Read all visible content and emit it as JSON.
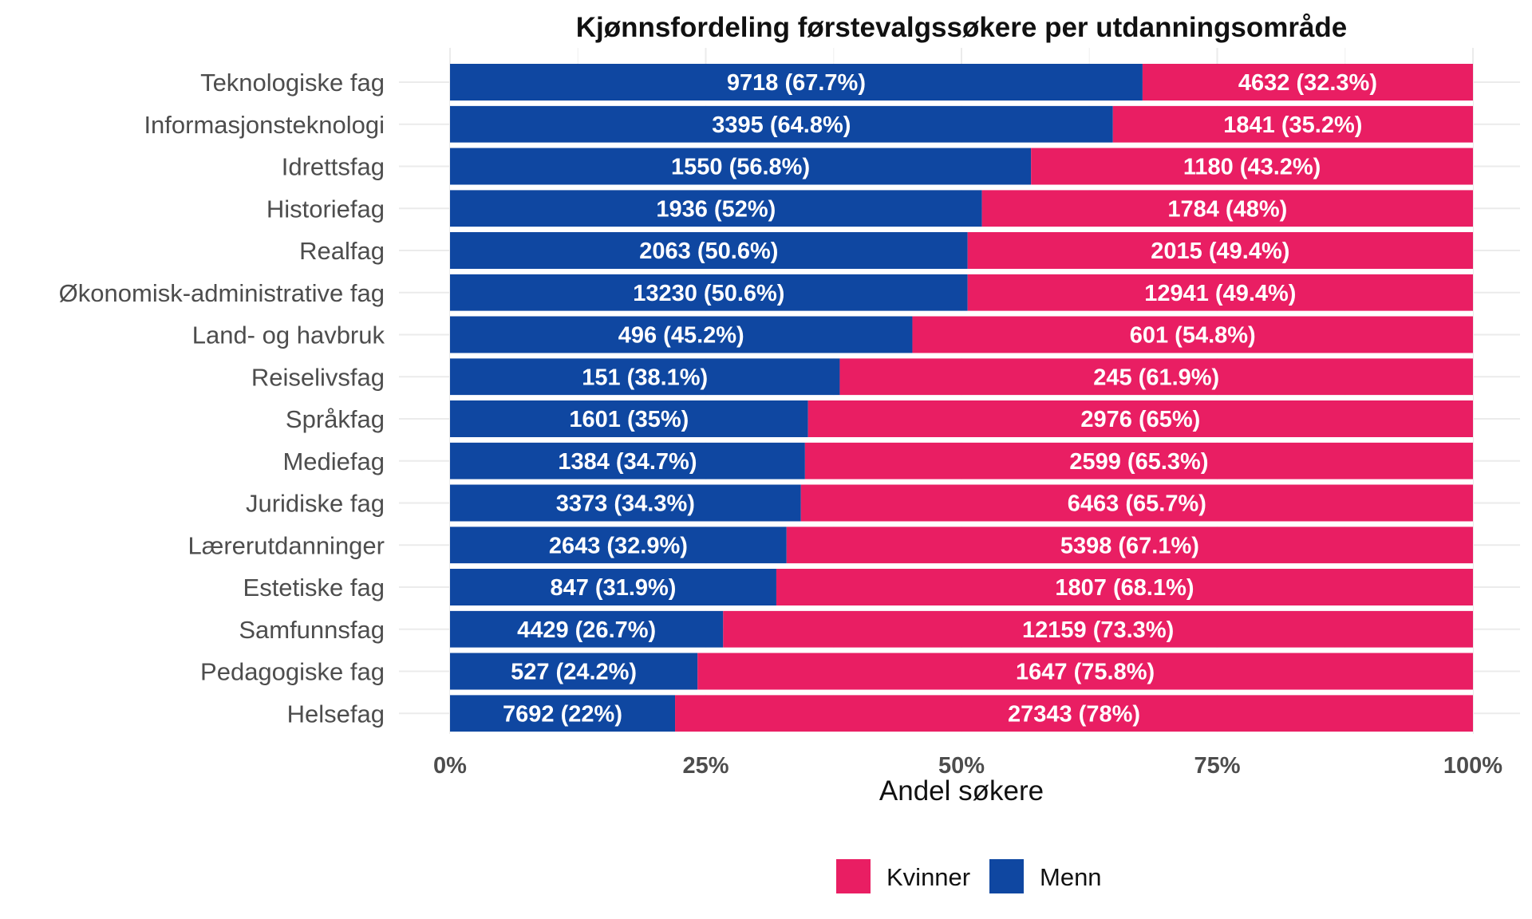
{
  "chart_data": {
    "type": "bar",
    "orientation": "horizontal",
    "stacked": true,
    "title": "Kjønnsfordeling førstevalgssøkere per utdanningsområde",
    "xlabel": "Andel søkere",
    "ylabel": "",
    "xlim": [
      0,
      1
    ],
    "x_ticks": [
      "0%",
      "25%",
      "50%",
      "75%",
      "100%"
    ],
    "grid": true,
    "legend_position": "bottom",
    "categories": [
      "Teknologiske fag",
      "Informasjonsteknologi",
      "Idrettsfag",
      "Historiefag",
      "Realfag",
      "Økonomisk-administrative fag",
      "Land- og havbruk",
      "Reiselivsfag",
      "Språkfag",
      "Mediefag",
      "Juridiske fag",
      "Lærerutdanninger",
      "Estetiske fag",
      "Samfunnsfag",
      "Pedagogiske fag",
      "Helsefag"
    ],
    "series": [
      {
        "name": "Menn",
        "color": "#0f47a1",
        "counts": [
          9718,
          3395,
          1550,
          1936,
          2063,
          13230,
          496,
          151,
          1601,
          1384,
          3373,
          2643,
          847,
          4429,
          527,
          7692
        ],
        "shares": [
          0.677,
          0.648,
          0.568,
          0.52,
          0.506,
          0.506,
          0.452,
          0.381,
          0.35,
          0.347,
          0.343,
          0.329,
          0.319,
          0.267,
          0.242,
          0.22
        ],
        "labels": [
          "9718 (67.7%)",
          "3395 (64.8%)",
          "1550 (56.8%)",
          "1936 (52%)",
          "2063 (50.6%)",
          "13230 (50.6%)",
          "496 (45.2%)",
          "151 (38.1%)",
          "1601 (35%)",
          "1384 (34.7%)",
          "3373 (34.3%)",
          "2643 (32.9%)",
          "847 (31.9%)",
          "4429 (26.7%)",
          "527 (24.2%)",
          "7692 (22%)"
        ]
      },
      {
        "name": "Kvinner",
        "color": "#e91e63",
        "counts": [
          4632,
          1841,
          1180,
          1784,
          2015,
          12941,
          601,
          245,
          2976,
          2599,
          6463,
          5398,
          1807,
          12159,
          1647,
          27343
        ],
        "shares": [
          0.323,
          0.352,
          0.432,
          0.48,
          0.494,
          0.494,
          0.548,
          0.619,
          0.65,
          0.653,
          0.657,
          0.671,
          0.681,
          0.733,
          0.758,
          0.78
        ],
        "labels": [
          "4632 (32.3%)",
          "1841 (35.2%)",
          "1180 (43.2%)",
          "1784 (48%)",
          "2015 (49.4%)",
          "12941 (49.4%)",
          "601 (54.8%)",
          "245 (61.9%)",
          "2976 (65%)",
          "2599 (65.3%)",
          "6463 (65.7%)",
          "5398 (67.1%)",
          "1807 (68.1%)",
          "12159 (73.3%)",
          "1647 (75.8%)",
          "27343 (78%)"
        ]
      }
    ],
    "legend": [
      {
        "name": "Kvinner",
        "color": "#e91e63"
      },
      {
        "name": "Menn",
        "color": "#0f47a1"
      }
    ]
  }
}
